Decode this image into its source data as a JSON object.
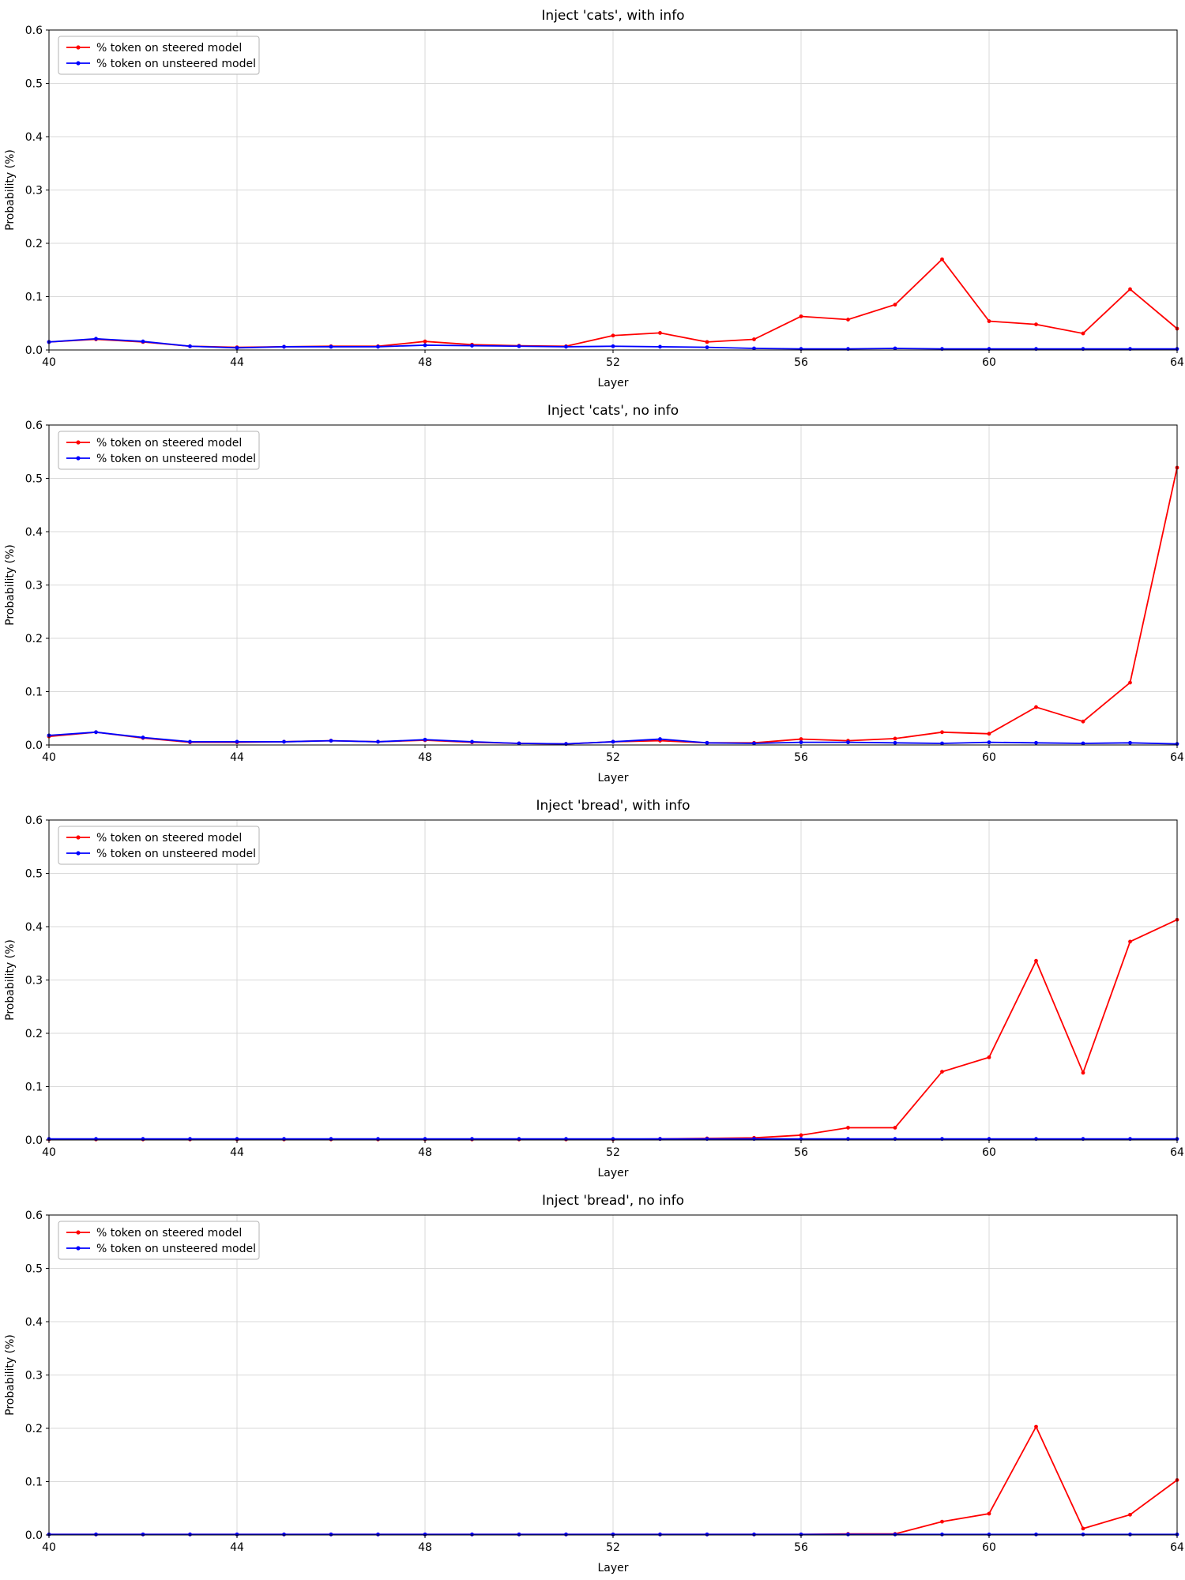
{
  "colors": {
    "steered": "#ff0000",
    "unsteered": "#0000ff",
    "grid": "#d9d9d9",
    "axis": "#000000",
    "legend_border": "#b3b3b3",
    "background": "#ffffff"
  },
  "chart_data": [
    {
      "type": "line",
      "title": "Inject 'cats', with info",
      "xlabel": "Layer",
      "ylabel": "Probability (%)",
      "xlim": [
        40,
        64
      ],
      "ylim": [
        0.0,
        0.6
      ],
      "xticks": [
        40,
        44,
        48,
        52,
        56,
        60,
        64
      ],
      "xtick_labels": [
        "40",
        "44",
        "48",
        "52",
        "56",
        "60",
        "64"
      ],
      "yticks": [
        0.0,
        0.1,
        0.2,
        0.3,
        0.4,
        0.5,
        0.6
      ],
      "ytick_labels": [
        "0.0",
        "0.1",
        "0.2",
        "0.3",
        "0.4",
        "0.5",
        "0.6"
      ],
      "grid": true,
      "legend_position": "upper left",
      "x": [
        40,
        41,
        42,
        43,
        44,
        45,
        46,
        47,
        48,
        49,
        50,
        51,
        52,
        53,
        54,
        55,
        56,
        57,
        58,
        59,
        60,
        61,
        62,
        63,
        64
      ],
      "series": [
        {
          "name": "% token on steered model",
          "color": "#ff0000",
          "values": [
            0.015,
            0.02,
            0.015,
            0.007,
            0.005,
            0.006,
            0.007,
            0.007,
            0.016,
            0.01,
            0.008,
            0.007,
            0.027,
            0.032,
            0.015,
            0.02,
            0.063,
            0.057,
            0.085,
            0.17,
            0.054,
            0.048,
            0.031,
            0.114,
            0.04
          ]
        },
        {
          "name": "% token on unsteered model",
          "color": "#0000ff",
          "values": [
            0.015,
            0.021,
            0.016,
            0.007,
            0.004,
            0.006,
            0.006,
            0.006,
            0.009,
            0.008,
            0.007,
            0.006,
            0.007,
            0.006,
            0.005,
            0.003,
            0.002,
            0.002,
            0.003,
            0.002,
            0.002,
            0.002,
            0.002,
            0.002,
            0.002
          ]
        }
      ]
    },
    {
      "type": "line",
      "title": "Inject 'cats', no info",
      "xlabel": "Layer",
      "ylabel": "Probability (%)",
      "xlim": [
        40,
        64
      ],
      "ylim": [
        0.0,
        0.6
      ],
      "xticks": [
        40,
        44,
        48,
        52,
        56,
        60,
        64
      ],
      "xtick_labels": [
        "40",
        "44",
        "48",
        "52",
        "56",
        "60",
        "64"
      ],
      "yticks": [
        0.0,
        0.1,
        0.2,
        0.3,
        0.4,
        0.5,
        0.6
      ],
      "ytick_labels": [
        "0.0",
        "0.1",
        "0.2",
        "0.3",
        "0.4",
        "0.5",
        "0.6"
      ],
      "grid": true,
      "legend_position": "upper left",
      "x": [
        40,
        41,
        42,
        43,
        44,
        45,
        46,
        47,
        48,
        49,
        50,
        51,
        52,
        53,
        54,
        55,
        56,
        57,
        58,
        59,
        60,
        61,
        62,
        63,
        64
      ],
      "series": [
        {
          "name": "% token on steered model",
          "color": "#ff0000",
          "values": [
            0.016,
            0.024,
            0.013,
            0.005,
            0.005,
            0.006,
            0.008,
            0.006,
            0.009,
            0.005,
            0.003,
            0.002,
            0.006,
            0.008,
            0.004,
            0.004,
            0.011,
            0.008,
            0.012,
            0.024,
            0.021,
            0.071,
            0.044,
            0.117,
            0.52
          ]
        },
        {
          "name": "% token on unsteered model",
          "color": "#0000ff",
          "values": [
            0.018,
            0.024,
            0.014,
            0.006,
            0.006,
            0.006,
            0.008,
            0.006,
            0.01,
            0.006,
            0.003,
            0.002,
            0.006,
            0.011,
            0.004,
            0.003,
            0.005,
            0.005,
            0.004,
            0.003,
            0.005,
            0.004,
            0.003,
            0.004,
            0.002
          ]
        }
      ]
    },
    {
      "type": "line",
      "title": "Inject 'bread', with info",
      "xlabel": "Layer",
      "ylabel": "Probability (%)",
      "xlim": [
        40,
        64
      ],
      "ylim": [
        0.0,
        0.6
      ],
      "xticks": [
        40,
        44,
        48,
        52,
        56,
        60,
        64
      ],
      "xtick_labels": [
        "40",
        "44",
        "48",
        "52",
        "56",
        "60",
        "64"
      ],
      "yticks": [
        0.0,
        0.1,
        0.2,
        0.3,
        0.4,
        0.5,
        0.6
      ],
      "ytick_labels": [
        "0.0",
        "0.1",
        "0.2",
        "0.3",
        "0.4",
        "0.5",
        "0.6"
      ],
      "grid": true,
      "legend_position": "upper left",
      "x": [
        40,
        41,
        42,
        43,
        44,
        45,
        46,
        47,
        48,
        49,
        50,
        51,
        52,
        53,
        54,
        55,
        56,
        57,
        58,
        59,
        60,
        61,
        62,
        63,
        64
      ],
      "series": [
        {
          "name": "% token on steered model",
          "color": "#ff0000",
          "values": [
            0.001,
            0.001,
            0.001,
            0.001,
            0.001,
            0.001,
            0.001,
            0.001,
            0.001,
            0.001,
            0.001,
            0.001,
            0.001,
            0.002,
            0.003,
            0.004,
            0.009,
            0.023,
            0.023,
            0.128,
            0.155,
            0.336,
            0.126,
            0.372,
            0.413
          ]
        },
        {
          "name": "% token on unsteered model",
          "color": "#0000ff",
          "values": [
            0.002,
            0.002,
            0.002,
            0.002,
            0.002,
            0.002,
            0.002,
            0.002,
            0.002,
            0.002,
            0.002,
            0.002,
            0.002,
            0.002,
            0.002,
            0.002,
            0.002,
            0.002,
            0.002,
            0.002,
            0.002,
            0.002,
            0.002,
            0.002,
            0.002
          ]
        }
      ]
    },
    {
      "type": "line",
      "title": "Inject 'bread', no info",
      "xlabel": "Layer",
      "ylabel": "Probability (%)",
      "xlim": [
        40,
        64
      ],
      "ylim": [
        0.0,
        0.6
      ],
      "xticks": [
        40,
        44,
        48,
        52,
        56,
        60,
        64
      ],
      "xtick_labels": [
        "40",
        "44",
        "48",
        "52",
        "56",
        "60",
        "64"
      ],
      "yticks": [
        0.0,
        0.1,
        0.2,
        0.3,
        0.4,
        0.5,
        0.6
      ],
      "ytick_labels": [
        "0.0",
        "0.1",
        "0.2",
        "0.3",
        "0.4",
        "0.5",
        "0.6"
      ],
      "grid": true,
      "legend_position": "upper left",
      "x": [
        40,
        41,
        42,
        43,
        44,
        45,
        46,
        47,
        48,
        49,
        50,
        51,
        52,
        53,
        54,
        55,
        56,
        57,
        58,
        59,
        60,
        61,
        62,
        63,
        64
      ],
      "series": [
        {
          "name": "% token on steered model",
          "color": "#ff0000",
          "values": [
            0.001,
            0.001,
            0.001,
            0.001,
            0.001,
            0.001,
            0.001,
            0.001,
            0.001,
            0.001,
            0.001,
            0.001,
            0.001,
            0.001,
            0.001,
            0.001,
            0.001,
            0.002,
            0.002,
            0.025,
            0.04,
            0.203,
            0.012,
            0.038,
            0.103
          ]
        },
        {
          "name": "% token on unsteered model",
          "color": "#0000ff",
          "values": [
            0.001,
            0.001,
            0.001,
            0.001,
            0.001,
            0.001,
            0.001,
            0.001,
            0.001,
            0.001,
            0.001,
            0.001,
            0.001,
            0.001,
            0.001,
            0.001,
            0.001,
            0.001,
            0.001,
            0.001,
            0.001,
            0.001,
            0.001,
            0.001,
            0.001
          ]
        }
      ]
    }
  ]
}
